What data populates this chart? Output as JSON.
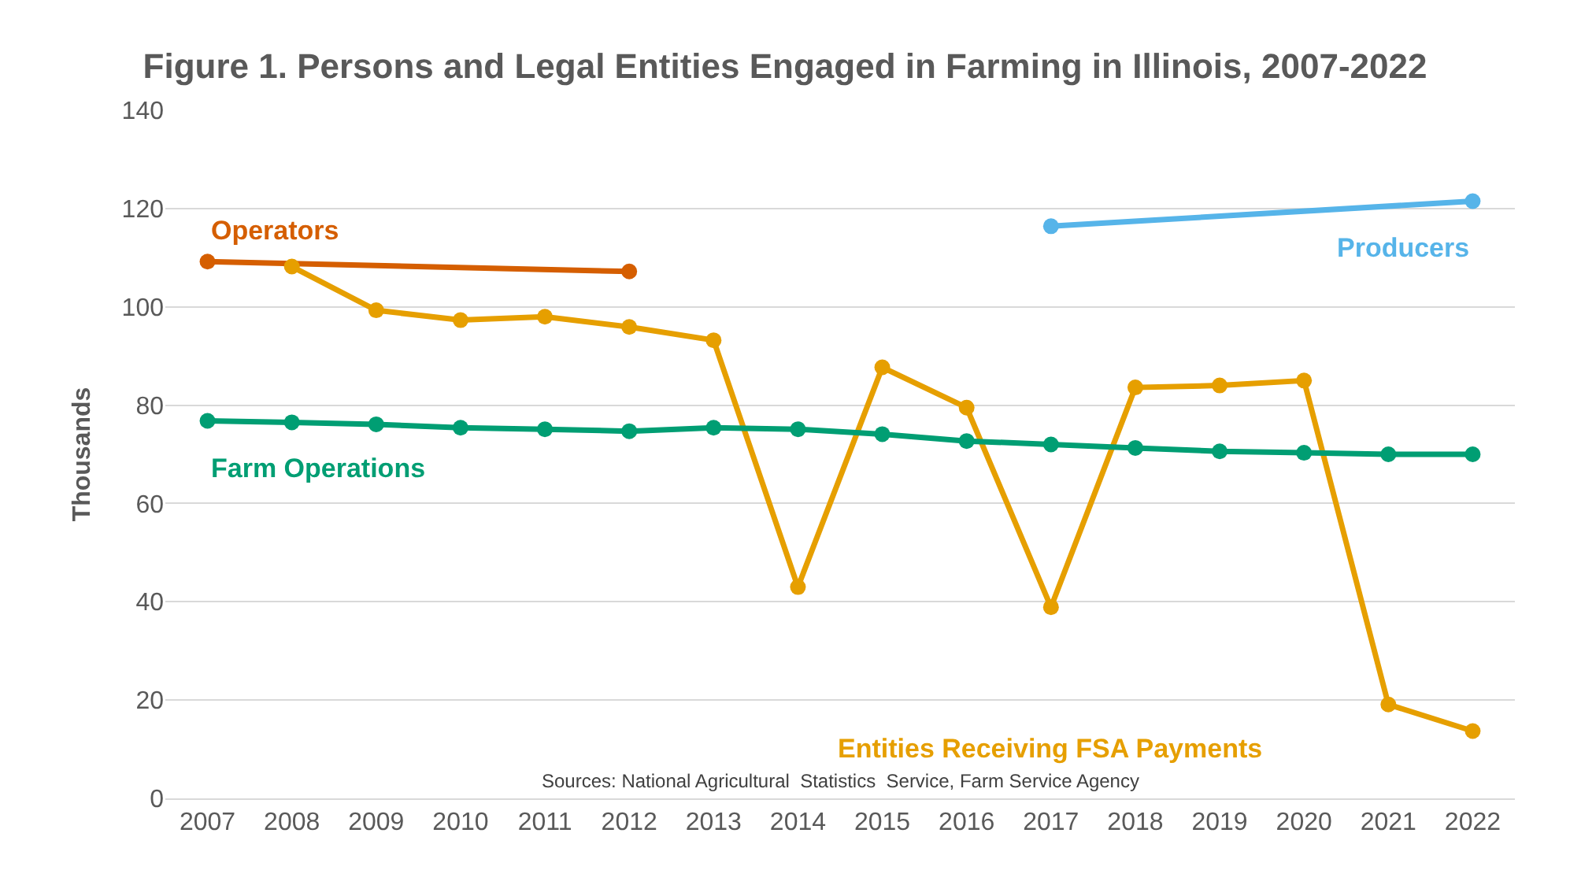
{
  "chart_data": {
    "type": "line",
    "title": "Figure 1. Persons and Legal Entities Engaged in Farming in Illinois, 2007-2022",
    "ylabel": "Thousands",
    "categories": [
      "2007",
      "2008",
      "2009",
      "2010",
      "2011",
      "2012",
      "2013",
      "2014",
      "2015",
      "2016",
      "2017",
      "2018",
      "2019",
      "2020",
      "2021",
      "2022"
    ],
    "series": [
      {
        "name": "Operators",
        "color": "#d55e00",
        "values": [
          109.2,
          null,
          null,
          null,
          null,
          107.2,
          null,
          null,
          null,
          null,
          null,
          null,
          null,
          null,
          null,
          null
        ]
      },
      {
        "name": "Producers",
        "color": "#56b4e9",
        "values": [
          null,
          null,
          null,
          null,
          null,
          null,
          null,
          null,
          null,
          null,
          116.4,
          null,
          null,
          null,
          null,
          121.5
        ]
      },
      {
        "name": "Entities Receiving FSA Payments",
        "color": "#e69f00",
        "values": [
          null,
          108.2,
          99.3,
          97.3,
          98.0,
          95.9,
          93.2,
          43.0,
          87.7,
          79.5,
          38.9,
          83.6,
          84.0,
          85.0,
          19.1,
          13.7
        ]
      },
      {
        "name": "Farm Operations",
        "color": "#009e73",
        "values": [
          76.8,
          76.5,
          76.1,
          75.4,
          75.1,
          74.7,
          75.4,
          75.1,
          74.1,
          72.7,
          72.0,
          71.3,
          70.6,
          70.3,
          70.0,
          70.0
        ]
      }
    ],
    "ylim": [
      0,
      140
    ],
    "yticks": [
      0,
      20,
      40,
      60,
      80,
      100,
      120,
      140
    ],
    "grid": "y",
    "legend": false,
    "marker": "circle",
    "line_style": "solid",
    "annotations": [
      "Sources: National Agricultural  Statistics  Service, Farm Service Agency"
    ]
  }
}
